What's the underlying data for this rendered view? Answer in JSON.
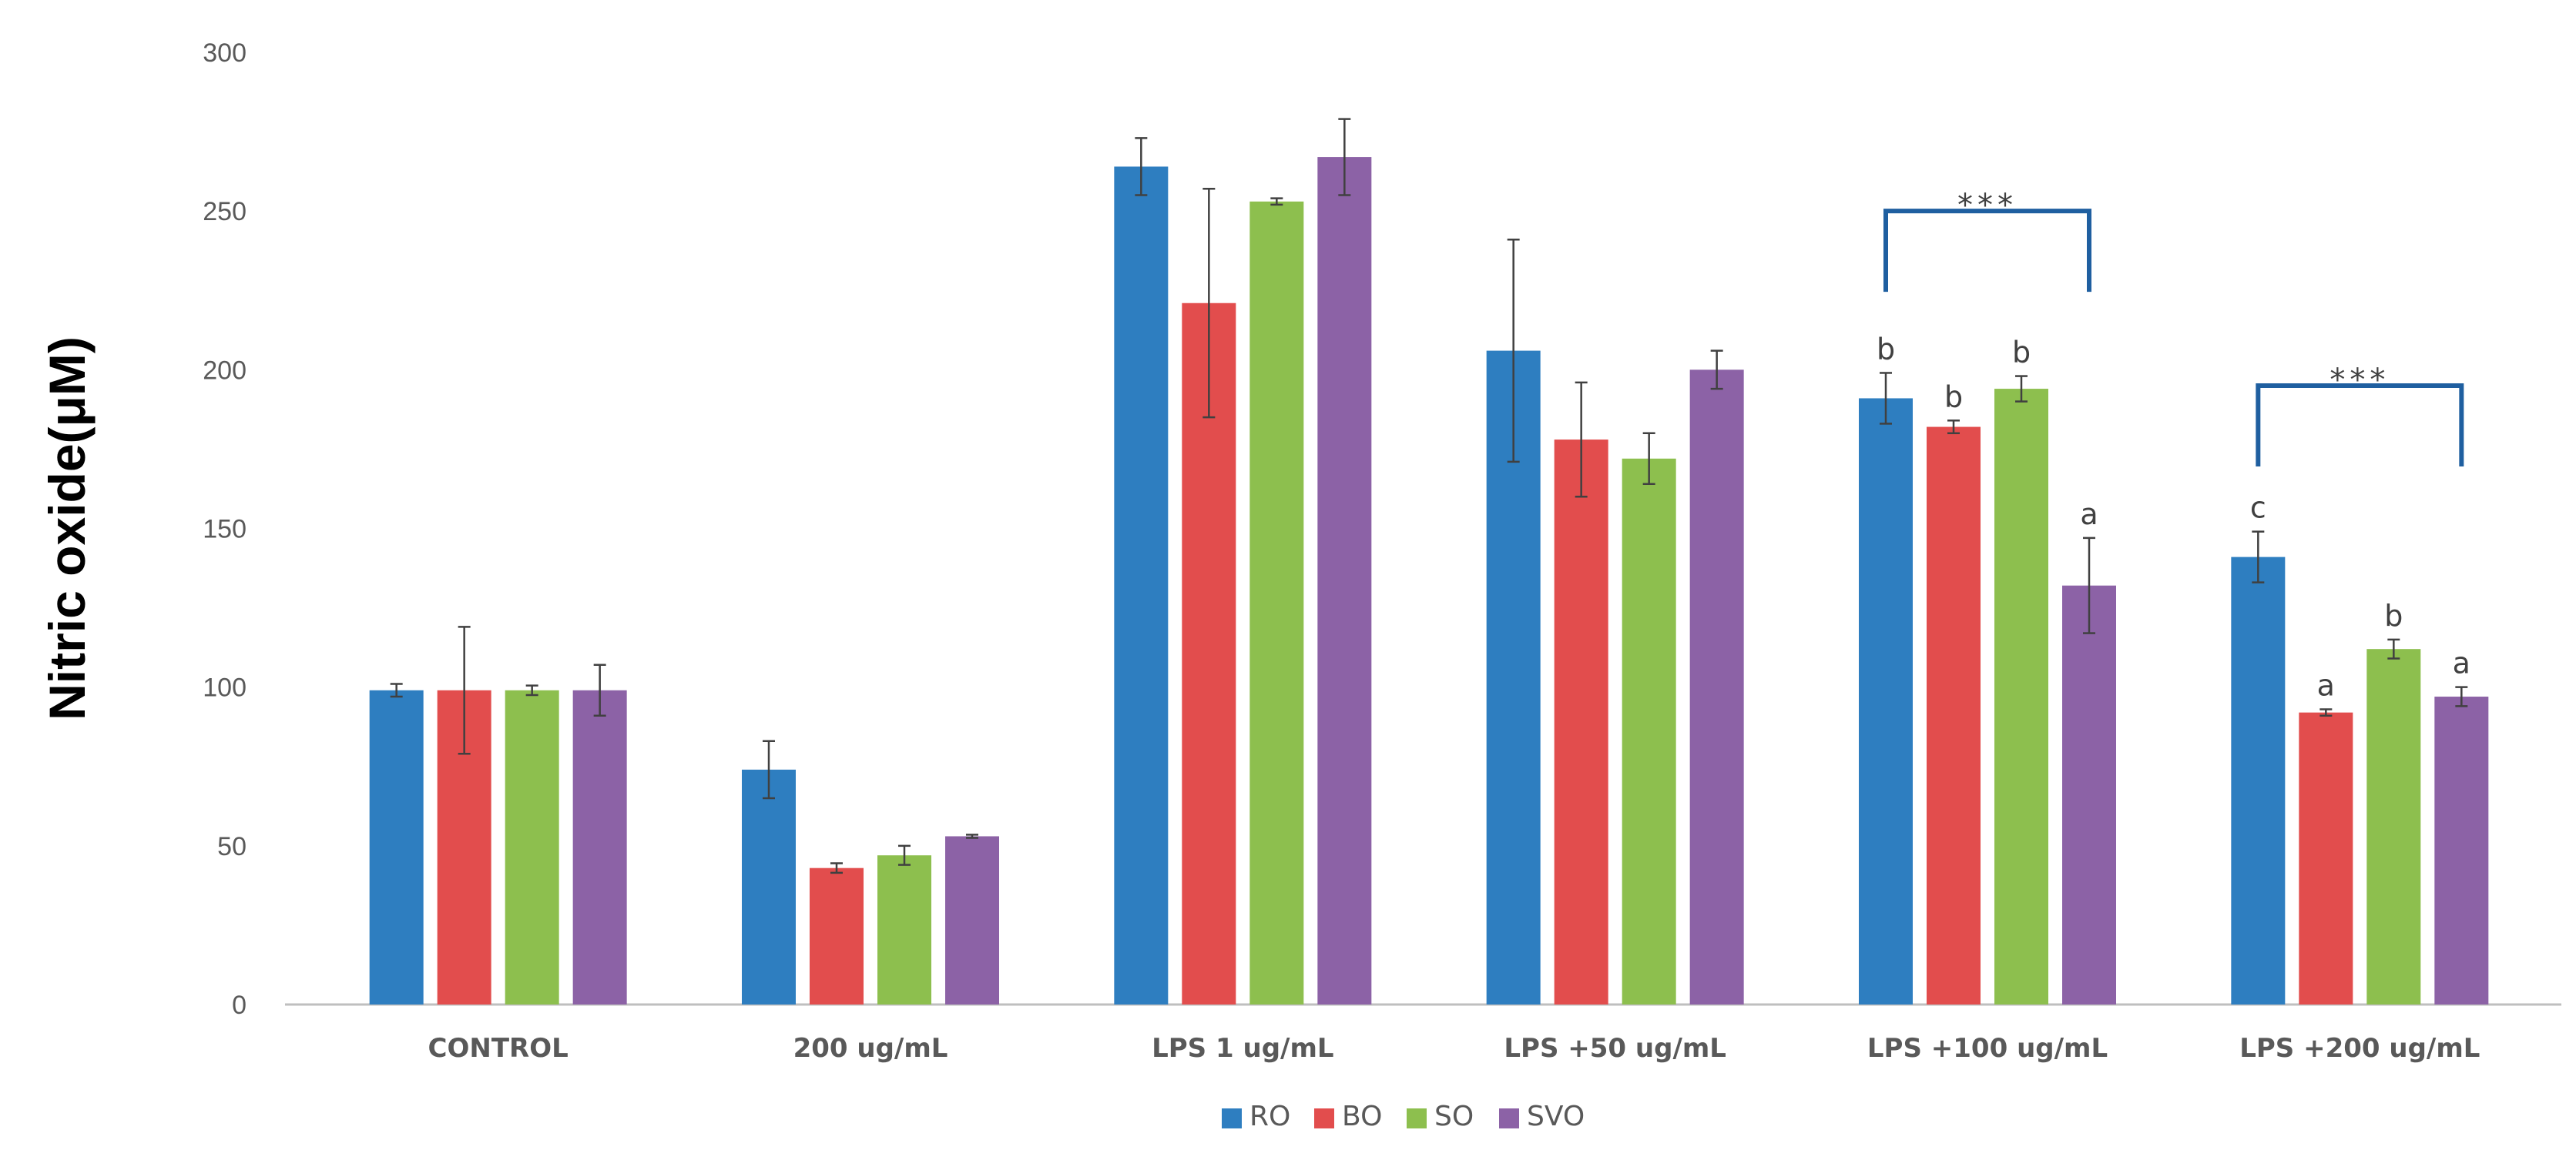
{
  "chart_data": {
    "type": "bar",
    "title": "",
    "xlabel": "",
    "ylabel": "Nitric oxide(μM)",
    "ylim": [
      0,
      300
    ],
    "yticks": [
      0,
      50,
      100,
      150,
      200,
      250,
      300
    ],
    "grid": false,
    "legend_position": "bottom",
    "categories": [
      "CONTROL",
      "200 ug/mL",
      "LPS 1 ug/mL",
      "LPS +50 ug/mL",
      "LPS +100 ug/mL",
      "LPS +200 ug/mL"
    ],
    "series": [
      {
        "name": "RO",
        "color": "#2E7EC0",
        "values": [
          99,
          74,
          264,
          206,
          191,
          141
        ],
        "errors": [
          2,
          9,
          9,
          35,
          8,
          8
        ]
      },
      {
        "name": "BO",
        "color": "#E24D4D",
        "values": [
          99,
          43,
          221,
          178,
          182,
          92
        ],
        "errors": [
          20,
          1.5,
          36,
          18,
          2,
          1
        ]
      },
      {
        "name": "SO",
        "color": "#8DBF4E",
        "values": [
          99,
          47,
          253,
          172,
          194,
          112
        ],
        "errors": [
          1.5,
          3,
          1,
          8,
          4,
          3
        ]
      },
      {
        "name": "SVO",
        "color": "#8C62A6",
        "values": [
          99,
          53,
          267,
          200,
          132,
          97
        ],
        "errors": [
          8,
          0.5,
          12,
          6,
          15,
          3
        ]
      }
    ],
    "significance_letters": [
      {
        "category": "LPS +100 ug/mL",
        "letters": [
          "b",
          "b",
          "b",
          "a"
        ]
      },
      {
        "category": "LPS +200 ug/mL",
        "letters": [
          "c",
          "a",
          "b",
          "a"
        ]
      }
    ],
    "brackets": [
      {
        "category": "LPS +100 ug/mL",
        "label": "***",
        "level": 250,
        "color": "#1F5FA0"
      },
      {
        "category": "LPS +200 ug/mL",
        "label": "***",
        "level": 195,
        "color": "#1F5FA0"
      }
    ]
  }
}
